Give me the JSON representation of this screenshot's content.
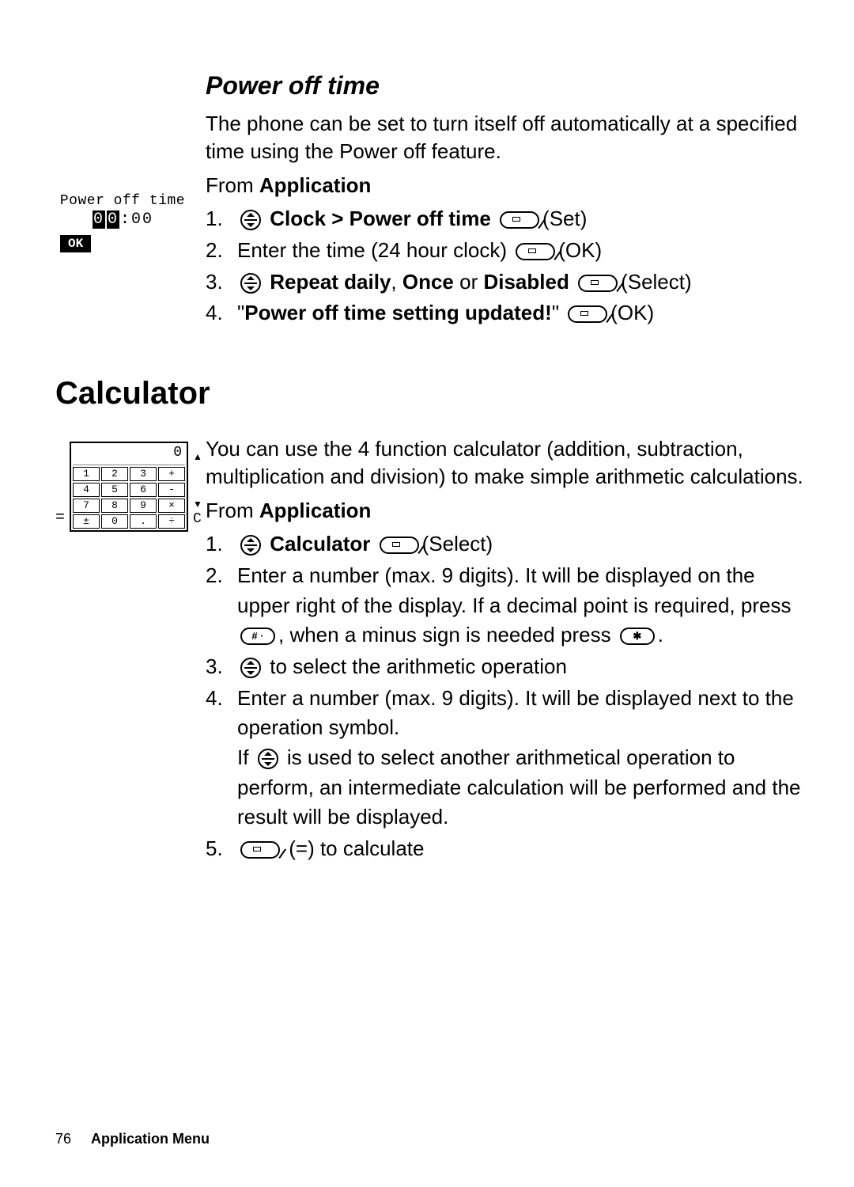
{
  "power_off": {
    "title": "Power off time",
    "intro": "The phone can be set to turn itself off automatically at a specified time using the Power off feature.",
    "from_prefix": "From ",
    "from_app": "Application",
    "steps": [
      {
        "n": "1.",
        "pre_icon": "nav",
        "bold": "Clock > Power off time ",
        "post_icon": "softkey",
        "tail": "(Set)"
      },
      {
        "n": "2.",
        "plain": "Enter the time (24 hour clock) ",
        "post_icon": "softkey",
        "tail": "(OK)"
      },
      {
        "n": "3.",
        "pre_icon": "nav",
        "bold": "Repeat daily",
        "mid": ", ",
        "bold2": "Once",
        "mid2": " or ",
        "bold3": "Disabled ",
        "post_icon": "softkey",
        "tail": "(Select)"
      },
      {
        "n": "4.",
        "quote_open": "\"",
        "bold": "Power off time setting updated!",
        "quote_close": "\" ",
        "post_icon": "softkey",
        "tail": "(OK)"
      }
    ],
    "screenshot": {
      "title": "Power off time",
      "digits": [
        "0",
        "0"
      ],
      "sep": ":",
      "rest": "00",
      "ok": "OK"
    }
  },
  "calculator": {
    "title": "Calculator",
    "intro": "You can use the 4 function calculator (addition, subtraction, multiplication and division) to make simple arithmetic calculations.",
    "from_prefix": "From ",
    "from_app": "Application",
    "steps": {
      "s1": {
        "n": "1.",
        "bold": "Calculator ",
        "tail": "(Select)"
      },
      "s2": {
        "n": "2.",
        "line1": "Enter a number (max. 9 digits). It will be displayed on the upper right of the display. If a decimal point is required, press ",
        "hash_label": "# ·",
        "mid": ", when a minus sign is needed press ",
        "star_label": "✱",
        "end": "."
      },
      "s3": {
        "n": "3.",
        "tail": " to select the arithmetic operation"
      },
      "s4": {
        "n": "4.",
        "p1": "Enter a number (max. 9 digits). It will be displayed next to the operation symbol.",
        "p2a": "If ",
        "p2b": " is used to select another arithmetical operation to perform, an intermediate calculation will be performed and the result will be displayed."
      },
      "s5": {
        "n": "5.",
        "tail": " (=) to calculate"
      }
    },
    "screenshot": {
      "eq": "=",
      "display": "0",
      "keys": [
        "1",
        "2",
        "3",
        "+",
        "4",
        "5",
        "6",
        "-",
        "7",
        "8",
        "9",
        "×",
        "±",
        "0",
        ".",
        "÷",
        "",
        "",
        "",
        "="
      ],
      "c": "C",
      "up": "▲",
      "down": "▼"
    }
  },
  "footer": {
    "page": "76",
    "label": "Application Menu"
  }
}
